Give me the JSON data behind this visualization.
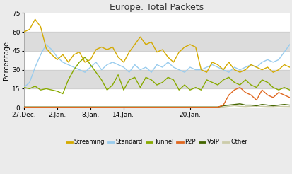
{
  "title": "Europe: Total Packets",
  "ylabel": "Percentage",
  "ylim": [
    0,
    75
  ],
  "yticks": [
    0,
    15,
    30,
    45,
    60,
    75
  ],
  "bg_color": "#ebebeb",
  "plot_bg": "#ffffff",
  "band1": [
    15,
    30
  ],
  "band2": [
    45,
    60
  ],
  "band_color": "#dcdcdc",
  "x_labels": [
    "27.Dec.",
    "2.Jan.",
    "8.Jan.",
    "14.Jan.",
    "20.Jan."
  ],
  "legend_labels": [
    "Streaming",
    "Standard",
    "Tunnel",
    "P2P",
    "VoIP",
    "Other"
  ],
  "colors": {
    "Streaming": "#d4aa00",
    "Standard": "#99ccee",
    "Tunnel": "#88aa00",
    "P2P": "#e06820",
    "VoIP": "#446600",
    "Other": "#ccccaa"
  },
  "streaming": [
    60,
    62,
    70,
    64,
    47,
    42,
    38,
    42,
    36,
    42,
    44,
    36,
    38,
    46,
    48,
    46,
    48,
    40,
    36,
    44,
    50,
    56,
    50,
    52,
    44,
    46,
    40,
    36,
    44,
    48,
    50,
    48,
    30,
    28,
    36,
    34,
    30,
    36,
    30,
    28,
    30,
    34,
    32,
    30,
    32,
    28,
    30,
    34,
    32
  ],
  "standard": [
    16,
    20,
    32,
    42,
    50,
    46,
    40,
    36,
    34,
    32,
    30,
    28,
    32,
    36,
    30,
    34,
    36,
    34,
    32,
    28,
    34,
    30,
    32,
    28,
    34,
    32,
    36,
    32,
    30,
    28,
    32,
    30,
    30,
    32,
    34,
    32,
    30,
    28,
    32,
    30,
    32,
    34,
    32,
    36,
    38,
    36,
    38,
    44,
    50
  ],
  "tunnel": [
    16,
    15,
    17,
    14,
    15,
    14,
    13,
    11,
    22,
    30,
    36,
    40,
    34,
    28,
    22,
    14,
    18,
    26,
    14,
    22,
    24,
    16,
    24,
    22,
    18,
    20,
    24,
    22,
    14,
    18,
    14,
    16,
    14,
    22,
    20,
    18,
    22,
    24,
    20,
    18,
    22,
    18,
    16,
    22,
    20,
    16,
    14,
    16,
    14
  ],
  "p2p": [
    0.3,
    0.3,
    0.3,
    0.3,
    0.3,
    0.3,
    0.3,
    0.3,
    0.3,
    0.3,
    0.3,
    0.3,
    0.3,
    0.3,
    0.3,
    0.3,
    0.3,
    0.3,
    0.3,
    0.3,
    0.3,
    0.3,
    0.3,
    0.3,
    0.3,
    0.3,
    0.3,
    0.3,
    0.3,
    0.3,
    0.3,
    0.3,
    0.3,
    0.3,
    0.3,
    0.3,
    2,
    10,
    14,
    16,
    12,
    10,
    6,
    14,
    10,
    8,
    12,
    10,
    8
  ],
  "voip": [
    0.5,
    0.5,
    0.5,
    0.5,
    0.5,
    0.5,
    0.5,
    0.5,
    0.5,
    0.5,
    0.5,
    0.5,
    0.5,
    0.5,
    0.5,
    0.5,
    0.5,
    0.5,
    0.5,
    0.5,
    0.5,
    0.5,
    0.5,
    0.5,
    0.5,
    0.5,
    0.5,
    0.5,
    0.5,
    0.5,
    0.5,
    0.5,
    0.5,
    0.5,
    0.5,
    0.5,
    1.5,
    2,
    2.5,
    3,
    2,
    2,
    1.5,
    2.5,
    2,
    1.5,
    2,
    2.5,
    2
  ],
  "other": [
    0.2,
    0.2,
    0.2,
    0.2,
    0.2,
    0.2,
    0.2,
    0.2,
    0.2,
    0.2,
    0.2,
    0.2,
    0.2,
    0.2,
    0.2,
    0.2,
    0.2,
    0.2,
    0.2,
    0.2,
    0.2,
    0.2,
    0.2,
    0.2,
    0.2,
    0.2,
    0.2,
    0.2,
    0.2,
    0.2,
    0.2,
    0.2,
    0.2,
    0.2,
    0.2,
    0.2,
    0.5,
    1,
    1.5,
    1,
    0.8,
    1,
    1.2,
    1,
    0.8,
    0.8,
    1,
    0.9,
    0.8
  ],
  "x_tick_indices": [
    0,
    6,
    12,
    18,
    30
  ],
  "n_points": 49
}
